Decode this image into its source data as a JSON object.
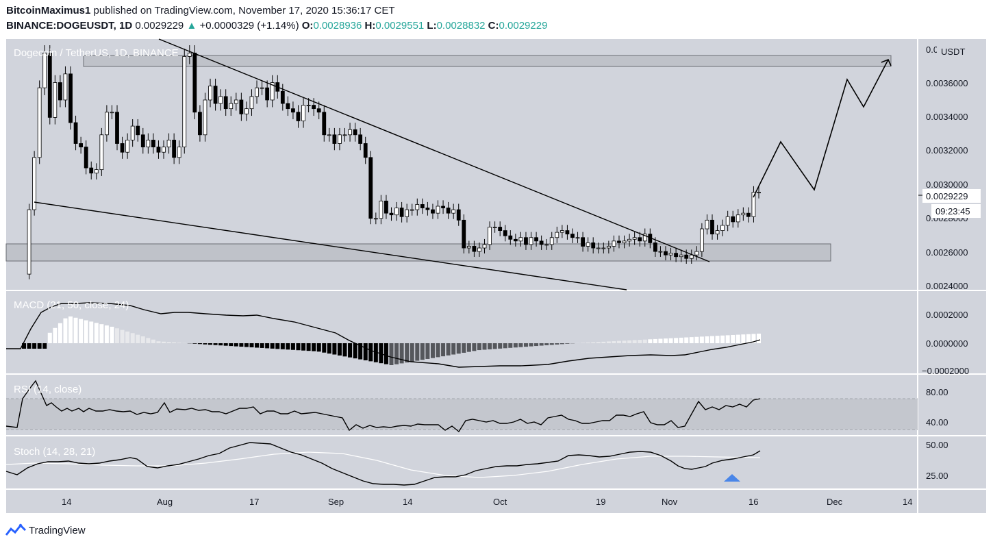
{
  "header": {
    "author": "BitcoinMaximus1",
    "published_text": " published on TradingView.com, November 17, 2020 15:36:17 CET",
    "symbol": "BINANCE:DOGEUSDT, 1D",
    "last": "0.0029229",
    "change": "+0.0000329 (+1.14%)",
    "o_label": "O:",
    "o_value": "0.0028936",
    "h_label": "H:",
    "h_value": "0.0029551",
    "l_label": "L:",
    "l_value": "0.0028832",
    "c_label": "C:",
    "c_value": "0.0029229",
    "arrow": "▲"
  },
  "footer": {
    "brand": "TradingView"
  },
  "colors": {
    "pane_bg": "#d1d4dc",
    "candle_up": "#ffffff",
    "candle_down": "#000000",
    "macd_line": "#000000",
    "signal_marker": "#4a86e8",
    "stoch_d": "#ffffff"
  },
  "chart_data": [
    {
      "type": "candlestick",
      "title": "Dogecoin / TetherUS, 1D, BINANCE",
      "ylabel": "USDT",
      "ylim": [
        0.00236,
        0.0038
      ],
      "y_ticks": [
        "0.0024000",
        "0.0026000",
        "0.0028000",
        "0.0030000",
        "0.0032000",
        "0.0034000",
        "0.0036000",
        "0.0038000"
      ],
      "current_price": "0.0029229",
      "countdown": "09:23:45",
      "x_ticks": [
        "14",
        "Aug",
        "17",
        "Sep",
        "14",
        "Oct",
        "19",
        "Nov",
        "16",
        "Dec",
        "14"
      ],
      "candles_close": [
        0.00245,
        0.00282,
        0.00312,
        0.00352,
        0.00372,
        0.00335,
        0.00355,
        0.00345,
        0.0036,
        0.00332,
        0.0032,
        0.00318,
        0.00306,
        0.00303,
        0.00305,
        0.00325,
        0.00338,
        0.00338,
        0.0032,
        0.00315,
        0.00322,
        0.0033,
        0.00325,
        0.00318,
        0.00322,
        0.00318,
        0.00315,
        0.00318,
        0.00322,
        0.00312,
        0.00318,
        0.0037,
        0.00372,
        0.00338,
        0.00325,
        0.00345,
        0.00353,
        0.00343,
        0.00347,
        0.0034,
        0.00343,
        0.00345,
        0.00337,
        0.0034,
        0.00347,
        0.00352,
        0.00352,
        0.00345,
        0.00355,
        0.0035,
        0.00343,
        0.0034,
        0.00338,
        0.00333,
        0.00342,
        0.00342,
        0.0034,
        0.00338,
        0.00325,
        0.00325,
        0.0032,
        0.00325,
        0.00325,
        0.00328,
        0.00325,
        0.0032,
        0.00312,
        0.00277,
        0.00277,
        0.00287,
        0.0028,
        0.00279,
        0.00283,
        0.00278,
        0.00282,
        0.00282,
        0.00285,
        0.00283,
        0.00282,
        0.0028,
        0.00284,
        0.00283,
        0.0028,
        0.00282,
        0.00276,
        0.0026,
        0.00261,
        0.00258,
        0.0026,
        0.00262,
        0.00272,
        0.00272,
        0.0027,
        0.00267,
        0.00265,
        0.00264,
        0.00266,
        0.00262,
        0.00266,
        0.00264,
        0.00262,
        0.00262,
        0.00266,
        0.00269,
        0.0027,
        0.00268,
        0.00266,
        0.00266,
        0.00261,
        0.00263,
        0.0026,
        0.0026,
        0.0026,
        0.00261,
        0.00264,
        0.00263,
        0.00264,
        0.00265,
        0.00266,
        0.00264,
        0.00268,
        0.00263,
        0.00258,
        0.00258,
        0.00256,
        0.00257,
        0.00255,
        0.00256,
        0.00254,
        0.00256,
        0.00258,
        0.00271,
        0.00276,
        0.00268,
        0.0027,
        0.00273,
        0.00278,
        0.00275,
        0.00279,
        0.0028,
        0.00278,
        0.00292,
        0.00292
      ]
    },
    {
      "type": "bar",
      "title": "MACD (21, 50, close, 24)",
      "ylim": [
        -0.00025,
        0.0003
      ],
      "y_ticks": [
        "−0.0002000",
        "0.0000000",
        "0.0002000"
      ]
    },
    {
      "type": "line",
      "title": "RSI (14, close)",
      "ylim": [
        25,
        95
      ],
      "y_ticks": [
        "40.00",
        "80.00"
      ]
    },
    {
      "type": "line",
      "title": "Stoch (14, 28, 21)",
      "ylim": [
        12,
        60
      ],
      "y_ticks": [
        "25.00",
        "50.00"
      ]
    }
  ]
}
